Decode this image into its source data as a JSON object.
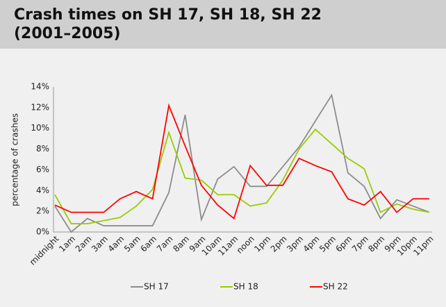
{
  "chart_data": {
    "type": "line",
    "title": "Crash times on SH 17, SH 18, SH 22 (2001–2005)",
    "y_label": "percentage of crashes",
    "categories": [
      "midnight",
      "1am",
      "2am",
      "3am",
      "4am",
      "5am",
      "6am",
      "7am",
      "8am",
      "9am",
      "10am",
      "11am",
      "noon",
      "1pm",
      "2pm",
      "3pm",
      "4pm",
      "5pm",
      "6pm",
      "7pm",
      "8pm",
      "9pm",
      "10pm",
      "11pm"
    ],
    "series": [
      {
        "name": "SH 17",
        "color": "#8c8c8c",
        "values": [
          2.5,
          0,
          1.3,
          0.6,
          0.6,
          0.6,
          0.6,
          3.8,
          11.3,
          1.2,
          5.1,
          6.3,
          4.4,
          4.4,
          6.3,
          8.2,
          10.7,
          13.2,
          5.7,
          4.4,
          1.3,
          3.1,
          2.5,
          1.9
        ]
      },
      {
        "name": "SH 18",
        "color": "#99cc00",
        "values": [
          3.6,
          0.8,
          0.8,
          1.1,
          1.4,
          2.5,
          4.1,
          9.6,
          5.2,
          5.0,
          3.6,
          3.6,
          2.5,
          2.8,
          5.0,
          8.0,
          9.9,
          8.5,
          7.1,
          6.1,
          1.9,
          2.7,
          2.2,
          1.9
        ]
      },
      {
        "name": "SH 22",
        "color": "#ff0000",
        "values": [
          2.6,
          1.9,
          1.9,
          1.9,
          3.2,
          3.9,
          3.2,
          12.2,
          8.3,
          4.5,
          2.6,
          1.3,
          6.4,
          4.5,
          4.5,
          7.1,
          6.4,
          5.8,
          3.2,
          2.6,
          3.9,
          1.9,
          3.2,
          3.2
        ]
      }
    ],
    "ylim": [
      0,
      14
    ],
    "yticks": [
      {
        "value": 0,
        "label": "0%"
      },
      {
        "value": 2,
        "label": "2%"
      },
      {
        "value": 4,
        "label": "4%"
      },
      {
        "value": 6,
        "label": "6%"
      },
      {
        "value": 8,
        "label": "8%"
      },
      {
        "value": 10,
        "label": "10%"
      },
      {
        "value": 12,
        "label": "12%"
      },
      {
        "value": 14,
        "label": "14%"
      }
    ],
    "grid": false,
    "legend": "bottom"
  }
}
